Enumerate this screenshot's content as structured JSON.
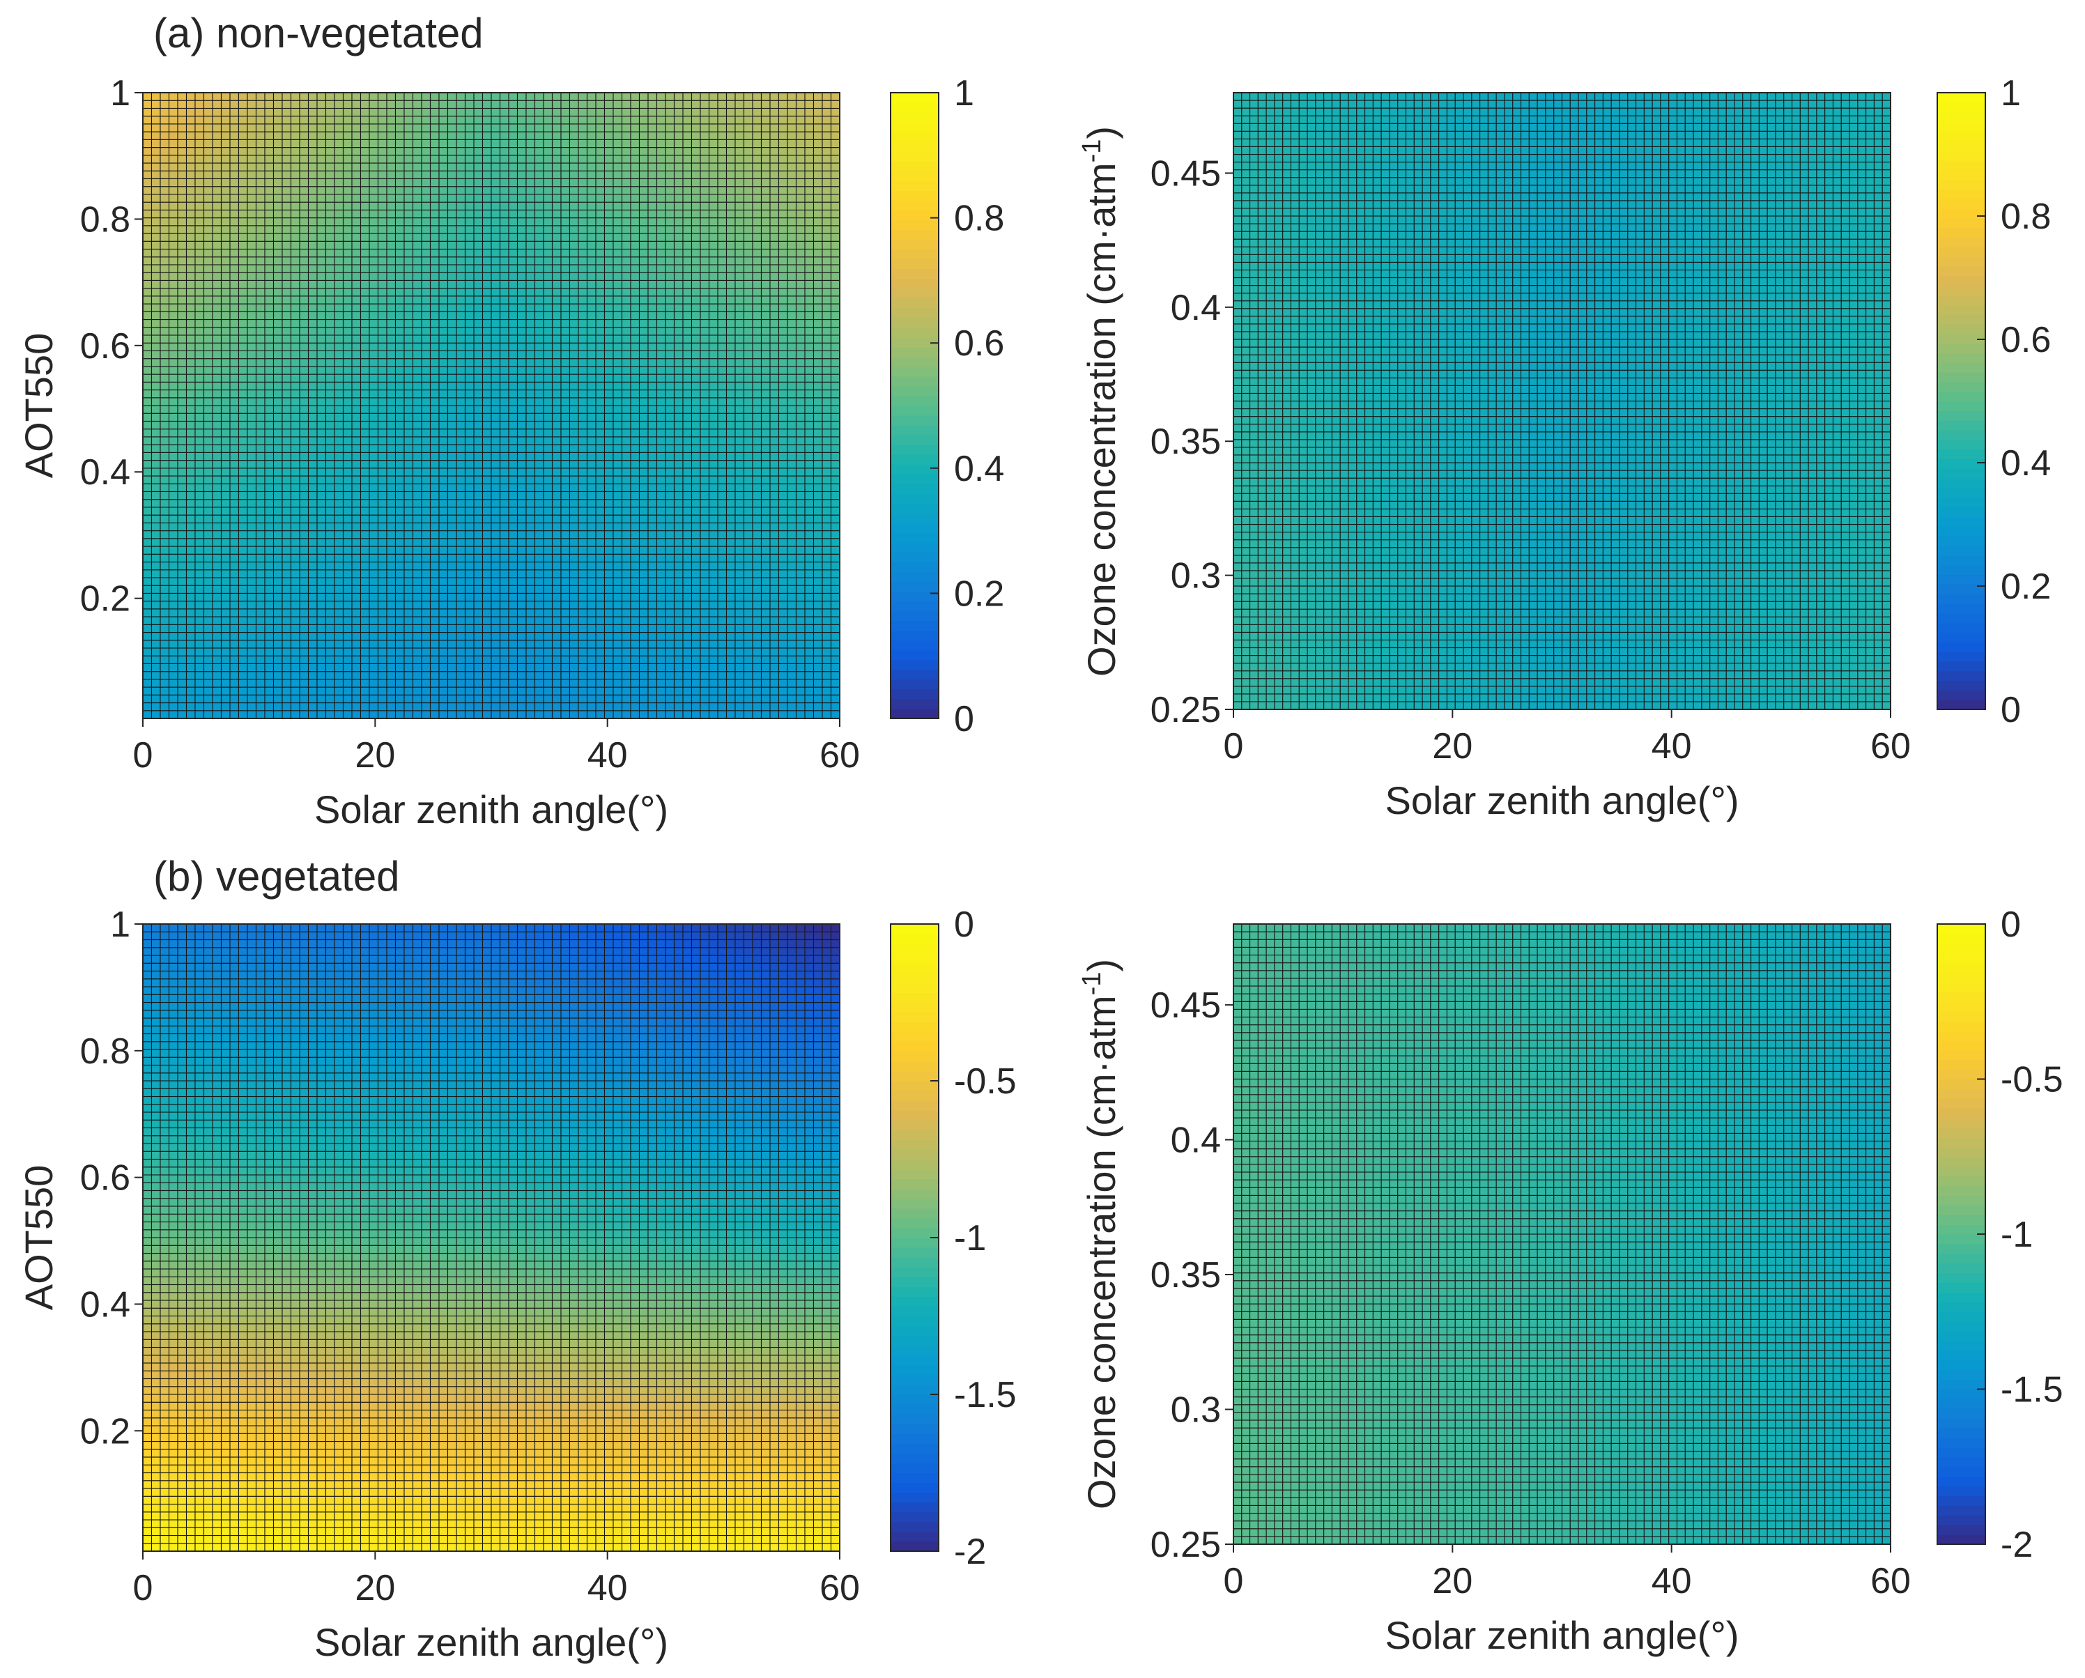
{
  "figure": {
    "title_a": "(a) non-vegetated",
    "title_b": "(b) vegetated"
  },
  "chart_data": [
    {
      "type": "heatmap",
      "panel": "a-left",
      "xlabel": "Solar zenith angle(°)",
      "ylabel": "AOT550",
      "xlim": [
        0,
        60
      ],
      "ylim": [
        0.01,
        1
      ],
      "xticks": [
        0,
        20,
        40,
        60
      ],
      "yticks": [
        0.2,
        0.4,
        0.6,
        0.8,
        1
      ],
      "ytick_labels": [
        "0.2",
        "0.4",
        "0.6",
        "0.8",
        "1"
      ],
      "grid_cells": [
        80,
        80
      ],
      "surface": "non-vegetated",
      "field_description": "value increases with AOT550 and toward both edges of zenith angle",
      "samples": [
        {
          "x": 0,
          "y": 0.01,
          "value": 0.3
        },
        {
          "x": 30,
          "y": 0.01,
          "value": 0.25
        },
        {
          "x": 60,
          "y": 0.01,
          "value": 0.29
        },
        {
          "x": 0,
          "y": 0.5,
          "value": 0.5
        },
        {
          "x": 30,
          "y": 0.5,
          "value": 0.35
        },
        {
          "x": 60,
          "y": 0.5,
          "value": 0.45
        },
        {
          "x": 0,
          "y": 1,
          "value": 0.75
        },
        {
          "x": 30,
          "y": 1,
          "value": 0.5
        },
        {
          "x": 60,
          "y": 1,
          "value": 0.68
        }
      ],
      "colorbar": {
        "range": [
          0,
          1
        ],
        "ticks": [
          0,
          0.2,
          0.4,
          0.6,
          0.8,
          1
        ],
        "tick_labels": [
          "0",
          "0.2",
          "0.4",
          "0.6",
          "0.8",
          "1"
        ]
      }
    },
    {
      "type": "heatmap",
      "panel": "a-right",
      "xlabel": "Solar zenith angle(°)",
      "ylabel_main": "Ozone concentration (cm·atm",
      "ylabel_sup": "-1",
      "ylabel_end": ")",
      "xlim": [
        0,
        60
      ],
      "ylim": [
        0.25,
        0.48
      ],
      "xticks": [
        0,
        20,
        40,
        60
      ],
      "yticks": [
        0.25,
        0.3,
        0.35,
        0.4,
        0.45
      ],
      "ytick_labels": [
        "0.25",
        "0.3",
        "0.35",
        "0.4",
        "0.45"
      ],
      "grid_cells": [
        80,
        80
      ],
      "surface": "non-vegetated",
      "field_description": "nearly uniform, slightly higher at both zenith-angle edges",
      "samples": [
        {
          "x": 0,
          "y": 0.25,
          "value": 0.45
        },
        {
          "x": 30,
          "y": 0.25,
          "value": 0.35
        },
        {
          "x": 60,
          "y": 0.25,
          "value": 0.42
        },
        {
          "x": 0,
          "y": 0.48,
          "value": 0.42
        },
        {
          "x": 30,
          "y": 0.48,
          "value": 0.34
        },
        {
          "x": 60,
          "y": 0.48,
          "value": 0.4
        }
      ],
      "colorbar": {
        "range": [
          0,
          1
        ],
        "ticks": [
          0,
          0.2,
          0.4,
          0.6,
          0.8,
          1
        ],
        "tick_labels": [
          "0",
          "0.2",
          "0.4",
          "0.6",
          "0.8",
          "1"
        ]
      }
    },
    {
      "type": "heatmap",
      "panel": "b-left",
      "xlabel": "Solar zenith angle(°)",
      "ylabel": "AOT550",
      "xlim": [
        0,
        60
      ],
      "ylim": [
        0.01,
        1
      ],
      "xticks": [
        0,
        20,
        40,
        60
      ],
      "yticks": [
        0.2,
        0.4,
        0.6,
        0.8,
        1
      ],
      "ytick_labels": [
        "0.2",
        "0.4",
        "0.6",
        "0.8",
        "1"
      ],
      "grid_cells": [
        80,
        80
      ],
      "surface": "vegetated",
      "field_description": "close to 0 at low AOT550, decreasing toward -2 at high AOT550 and large zenith angle",
      "samples": [
        {
          "x": 0,
          "y": 0.01,
          "value": -0.1
        },
        {
          "x": 30,
          "y": 0.01,
          "value": -0.2
        },
        {
          "x": 60,
          "y": 0.01,
          "value": -0.15
        },
        {
          "x": 0,
          "y": 0.5,
          "value": -0.95
        },
        {
          "x": 30,
          "y": 0.5,
          "value": -1.05
        },
        {
          "x": 60,
          "y": 0.5,
          "value": -1.2
        },
        {
          "x": 0,
          "y": 1,
          "value": -1.6
        },
        {
          "x": 30,
          "y": 1,
          "value": -1.7
        },
        {
          "x": 60,
          "y": 1,
          "value": -2.0
        }
      ],
      "colorbar": {
        "range": [
          -2,
          0
        ],
        "ticks": [
          -2,
          -1.5,
          -1,
          -0.5,
          0
        ],
        "tick_labels": [
          "-2",
          "-1.5",
          "-1",
          "-0.5",
          "0"
        ]
      }
    },
    {
      "type": "heatmap",
      "panel": "b-right",
      "xlabel": "Solar zenith angle(°)",
      "ylabel_main": "Ozone concentration (cm·atm",
      "ylabel_sup": "-1",
      "ylabel_end": ")",
      "xlim": [
        0,
        60
      ],
      "ylim": [
        0.25,
        0.48
      ],
      "xticks": [
        0,
        20,
        40,
        60
      ],
      "yticks": [
        0.25,
        0.3,
        0.35,
        0.4,
        0.45
      ],
      "ytick_labels": [
        "0.25",
        "0.3",
        "0.35",
        "0.4",
        "0.45"
      ],
      "grid_cells": [
        80,
        80
      ],
      "surface": "vegetated",
      "field_description": "nearly uniform around -1.1 to -1.3, slightly lower at large zenith angle",
      "samples": [
        {
          "x": 0,
          "y": 0.25,
          "value": -1.0
        },
        {
          "x": 30,
          "y": 0.25,
          "value": -1.1
        },
        {
          "x": 60,
          "y": 0.25,
          "value": -1.25
        },
        {
          "x": 0,
          "y": 0.48,
          "value": -1.05
        },
        {
          "x": 30,
          "y": 0.48,
          "value": -1.15
        },
        {
          "x": 60,
          "y": 0.48,
          "value": -1.3
        }
      ],
      "colorbar": {
        "range": [
          -2,
          0
        ],
        "ticks": [
          -2,
          -1.5,
          -1,
          -0.5,
          0
        ],
        "tick_labels": [
          "-2",
          "-1.5",
          "-1",
          "-0.5",
          "0"
        ]
      }
    }
  ]
}
